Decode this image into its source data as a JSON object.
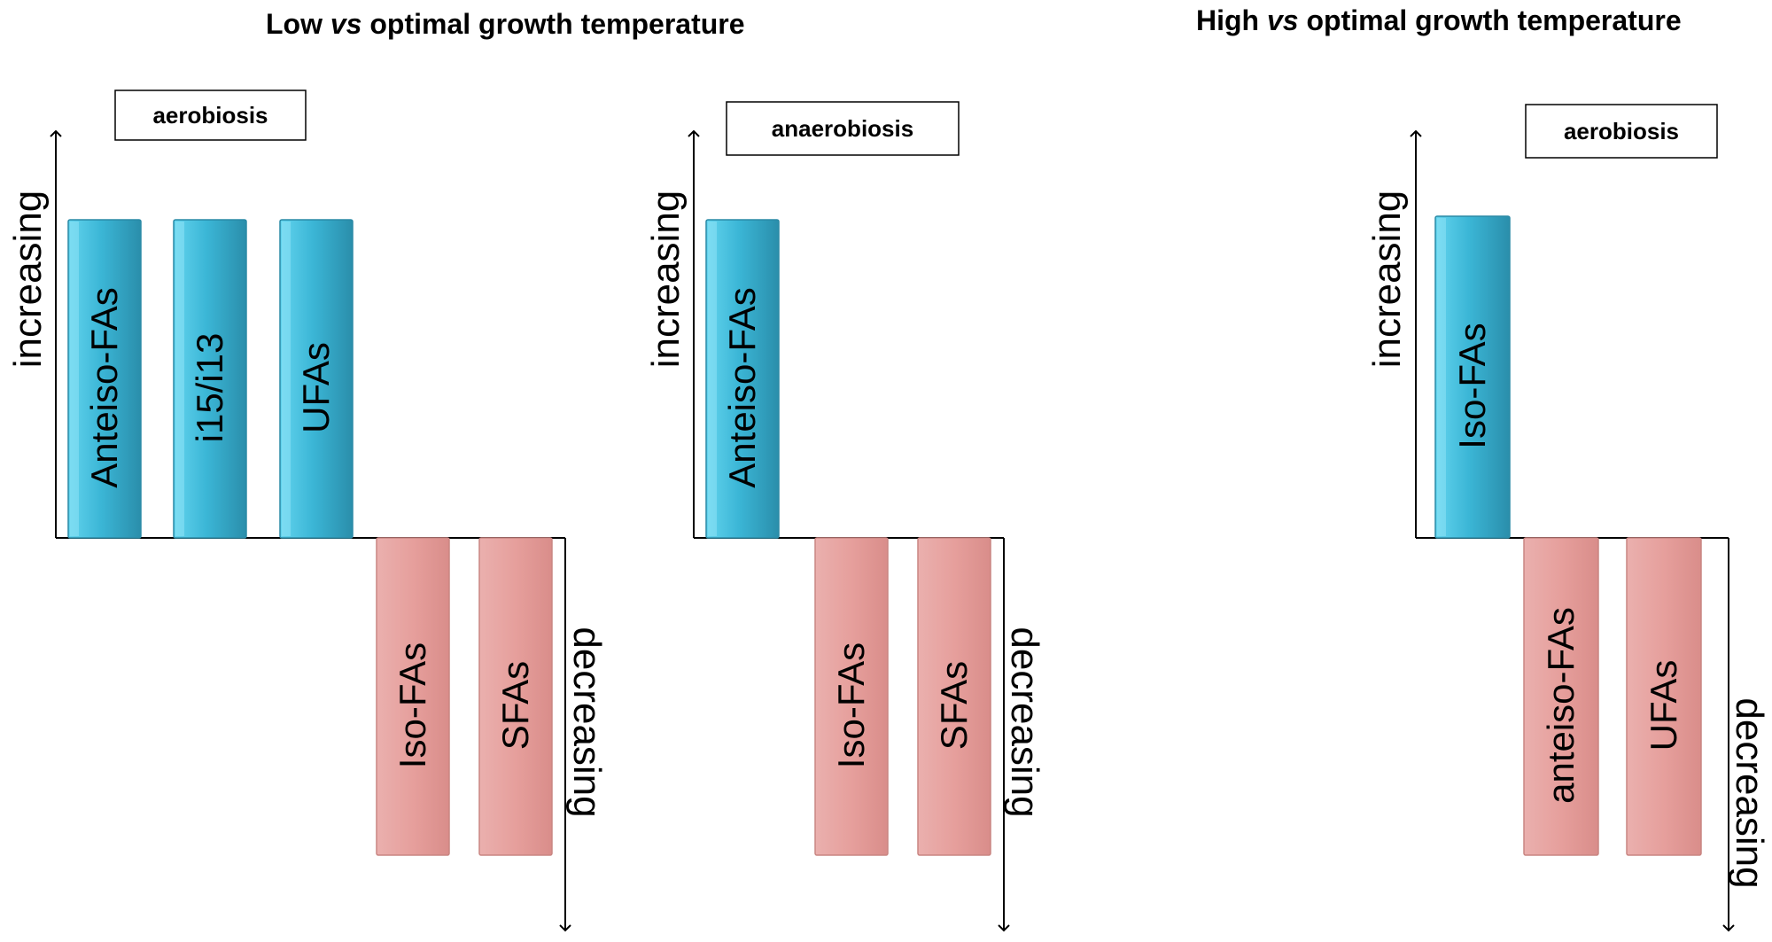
{
  "titles": {
    "low": {
      "pre": "Low ",
      "vs": "vs",
      "post": " optimal growth temperature"
    },
    "high": {
      "pre": "High ",
      "vs": "vs",
      "post": " optimal growth temperature"
    }
  },
  "panels": [
    {
      "condition": "aerobiosis",
      "up_label": "increasing",
      "down_label": "decreasing",
      "increasing_bars": [
        "Anteiso-FAs",
        "i15/i13",
        "UFAs"
      ],
      "decreasing_bars": [
        "Iso-FAs",
        "SFAs"
      ]
    },
    {
      "condition": "anaerobiosis",
      "up_label": "increasing",
      "down_label": "decreasing",
      "increasing_bars": [
        "Anteiso-FAs"
      ],
      "decreasing_bars": [
        "Iso-FAs",
        "SFAs"
      ]
    },
    {
      "condition": "aerobiosis",
      "up_label": "increasing",
      "down_label": "decreasing",
      "increasing_bars": [
        "Iso-FAs"
      ],
      "decreasing_bars": [
        "anteiso-FAs",
        "UFAs"
      ]
    }
  ],
  "colors": {
    "increasing_light": "#4cc8e8",
    "increasing_dark": "#2a93b0",
    "decreasing_fill": "#e8a2a0",
    "decreasing_edge": "#c98582",
    "line": "#000000"
  }
}
